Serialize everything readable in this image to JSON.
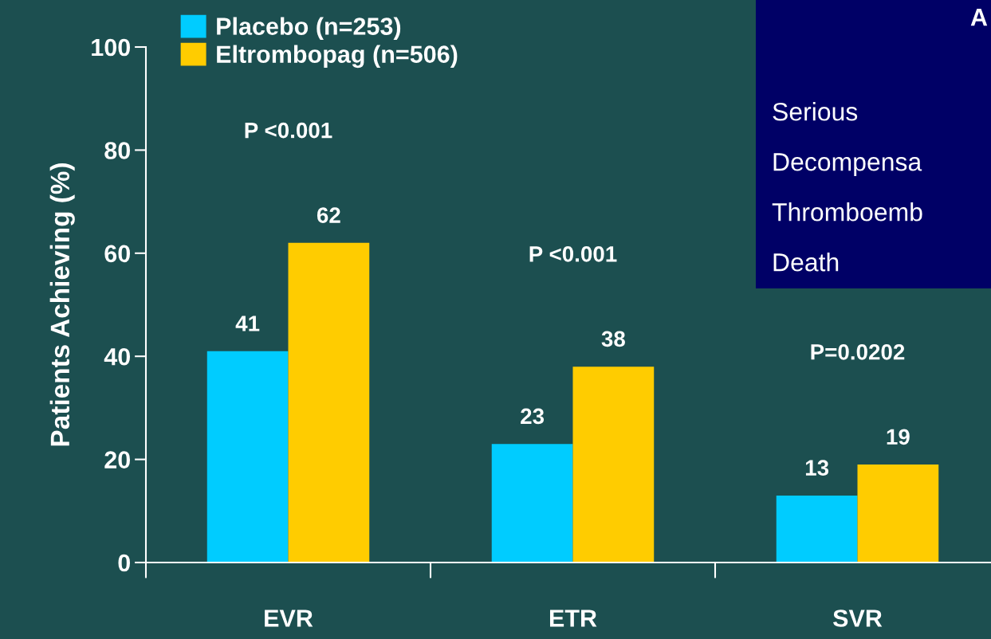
{
  "chart_data": {
    "type": "bar",
    "ylabel": "Patients Achieving (%)",
    "categories": [
      "EVR",
      "ETR",
      "SVR"
    ],
    "series": [
      {
        "name": "Placebo (n=253)",
        "color": "#00ccff",
        "values": [
          41,
          23,
          13
        ]
      },
      {
        "name": "Eltrombopag (n=506)",
        "color": "#ffcc00",
        "values": [
          62,
          38,
          19
        ]
      }
    ],
    "ylim": [
      0,
      100
    ],
    "yticks": [
      0,
      20,
      40,
      60,
      80,
      100
    ],
    "grid": false,
    "legend": "top left",
    "data_labels": true,
    "annotations": [
      "P <0.001",
      "P <0.001",
      "P=0.0202",
      "A",
      "Serious",
      "Decompensa",
      "Thromboemb",
      "Death"
    ]
  }
}
